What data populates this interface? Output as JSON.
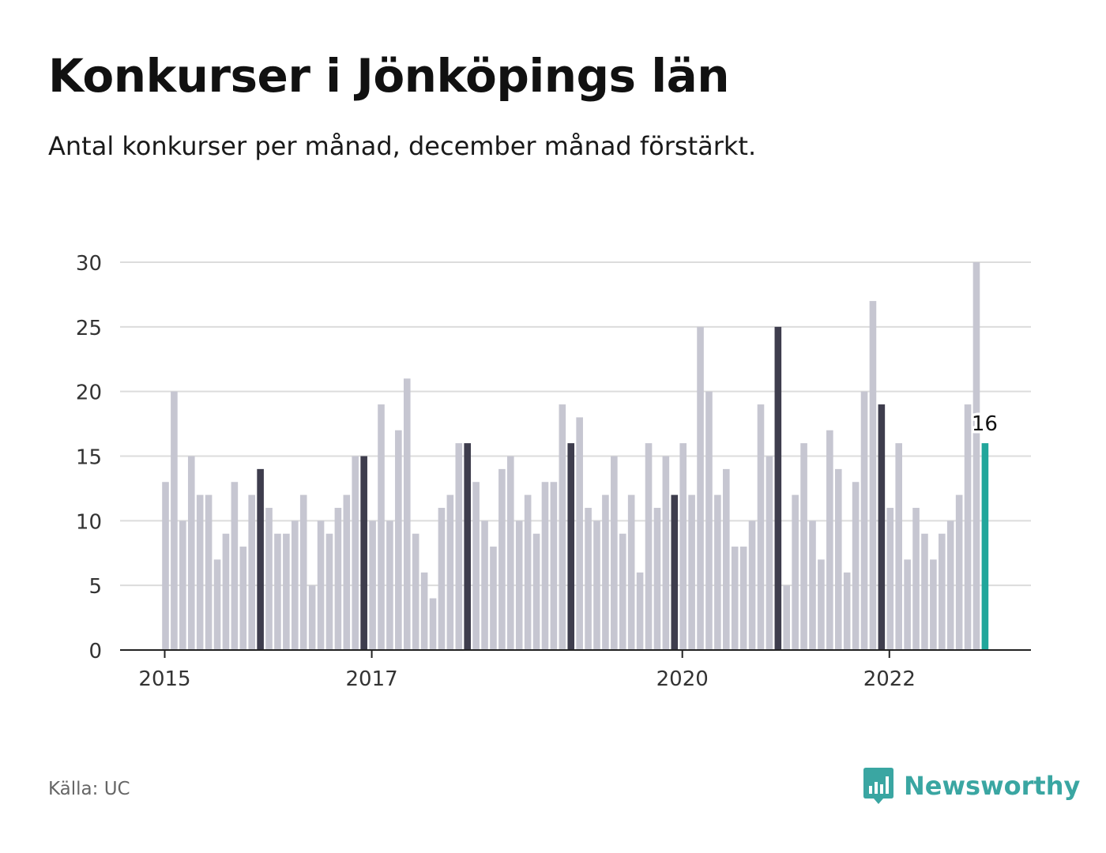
{
  "title": "Konkurser i Jönköpings län",
  "subtitle": "Antal konkurser per månad, december månad förstärkt.",
  "source": "Källa: UC",
  "brand": {
    "name": "Newsworthy",
    "icon": "bar-chart-speech-bubble-icon"
  },
  "colors": {
    "bar": "#c6c6d1",
    "december": "#3e3d4d",
    "latest": "#21a69b",
    "grid": "#dcdcdc",
    "axis": "#222222",
    "brand": "#3aa6a2"
  },
  "chart_data": {
    "type": "bar",
    "title": "Konkurser i Jönköpings län",
    "xlabel": "",
    "ylabel": "",
    "ylim": [
      0,
      30
    ],
    "yticks": [
      0,
      5,
      10,
      15,
      20,
      25,
      30
    ],
    "grid": true,
    "start": {
      "year": 2015,
      "month": 1
    },
    "xtick_labels": [
      {
        "label": "2015",
        "index": 0
      },
      {
        "label": "2017",
        "index": 24
      },
      {
        "label": "2020",
        "index": 60
      },
      {
        "label": "2022",
        "index": 84
      }
    ],
    "highlight_rule": "December bars dark, latest bar teal",
    "latest_label": "16",
    "values": [
      13,
      20,
      10,
      15,
      12,
      12,
      7,
      9,
      13,
      8,
      12,
      14,
      11,
      9,
      9,
      10,
      12,
      5,
      10,
      9,
      11,
      12,
      15,
      15,
      10,
      19,
      10,
      17,
      21,
      9,
      6,
      4,
      11,
      12,
      16,
      16,
      13,
      10,
      8,
      14,
      15,
      10,
      12,
      9,
      13,
      13,
      19,
      16,
      18,
      11,
      10,
      12,
      15,
      9,
      12,
      6,
      16,
      11,
      15,
      12,
      16,
      12,
      25,
      20,
      12,
      14,
      8,
      8,
      10,
      19,
      15,
      25,
      5,
      12,
      16,
      10,
      7,
      17,
      14,
      6,
      13,
      20,
      27,
      19,
      11,
      16,
      7,
      11,
      9,
      7,
      9,
      10,
      12,
      19,
      30,
      16
    ]
  }
}
